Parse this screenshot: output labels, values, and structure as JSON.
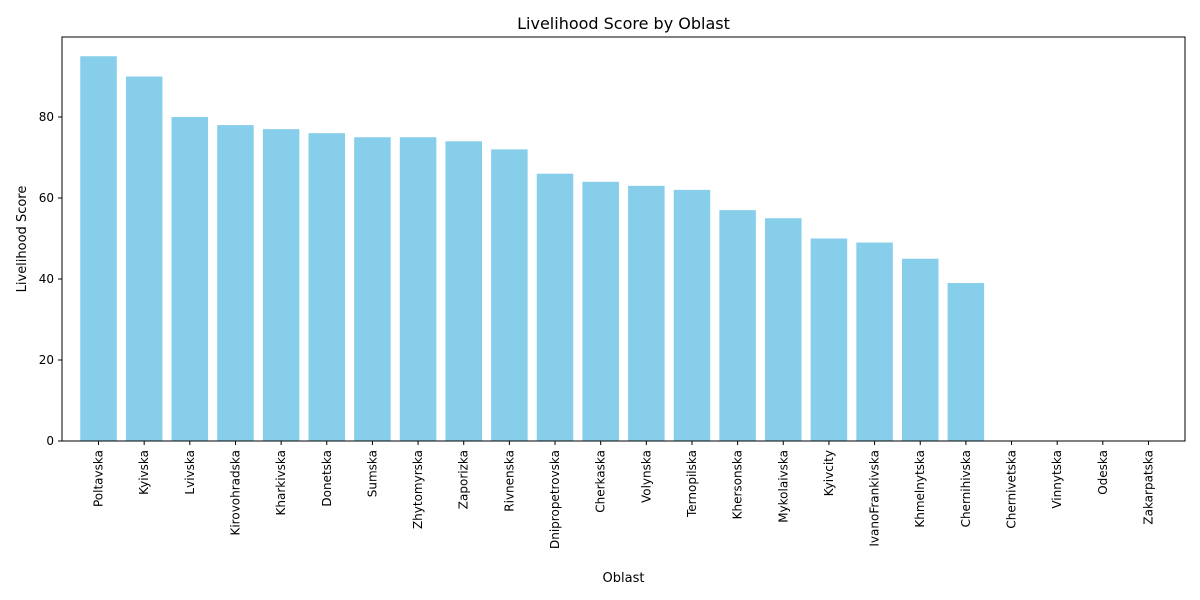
{
  "chart_data": {
    "type": "bar",
    "title": "Livelihood Score by Oblast",
    "xlabel": "Oblast",
    "ylabel": "Livelihood Score",
    "categories": [
      "Poltavska",
      "Kyivska",
      "Lvivska",
      "Kirovohradska",
      "Kharkivska",
      "Donetska",
      "Sumska",
      "Zhytomyrska",
      "Zaporizka",
      "Rivnenska",
      "Dnipropetrovska",
      "Cherkaska",
      "Volynska",
      "Ternopilska",
      "Khersonska",
      "Mykolaivska",
      "Kyivcity",
      "IvanoFrankivska",
      "Khmelnytska",
      "Chernihivska",
      "Chernivetska",
      "Vinnytska",
      "Odeska",
      "Zakarpatska"
    ],
    "values": [
      95,
      90,
      80,
      78,
      77,
      76,
      75,
      75,
      74,
      72,
      66,
      64,
      63,
      62,
      57,
      55,
      50,
      49,
      45,
      39,
      0,
      0,
      0,
      0
    ],
    "ylim": [
      0,
      99.75
    ],
    "yticks": [
      0,
      20,
      40,
      60,
      80
    ],
    "grid": false,
    "bar_color": "#87ceeb"
  }
}
